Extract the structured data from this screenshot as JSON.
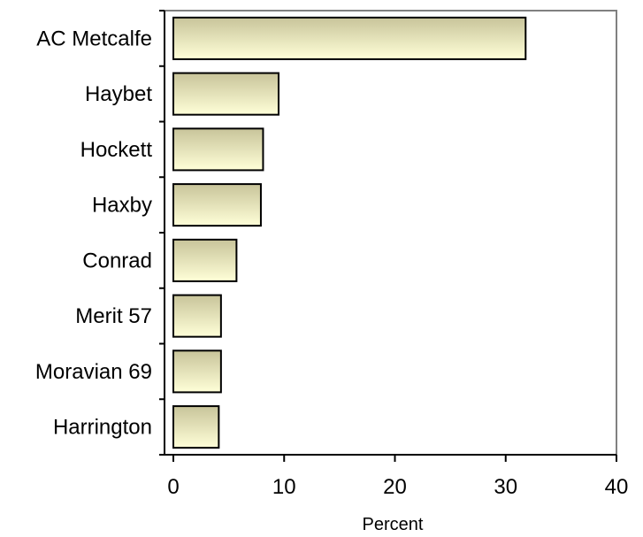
{
  "chart_data": {
    "type": "bar",
    "orientation": "horizontal",
    "categories": [
      "AC Metcalfe",
      "Haybet",
      "Hockett",
      "Haxby",
      "Conrad",
      "Merit 57",
      "Moravian 69",
      "Harrington"
    ],
    "values": [
      31.8,
      9.5,
      8.1,
      7.9,
      5.7,
      4.3,
      4.3,
      4.1
    ],
    "xlabel": "Percent",
    "ylabel": "",
    "xlim": [
      0,
      40
    ],
    "xticks": [
      0,
      10,
      20,
      30,
      40
    ],
    "grid": false,
    "legend": "none",
    "colors": {
      "bar_light": "#ffffd8",
      "bar_dark": "#c8c49a",
      "bar_stroke": "#000000",
      "plot_border": "#808080",
      "axis": "#000000"
    }
  }
}
